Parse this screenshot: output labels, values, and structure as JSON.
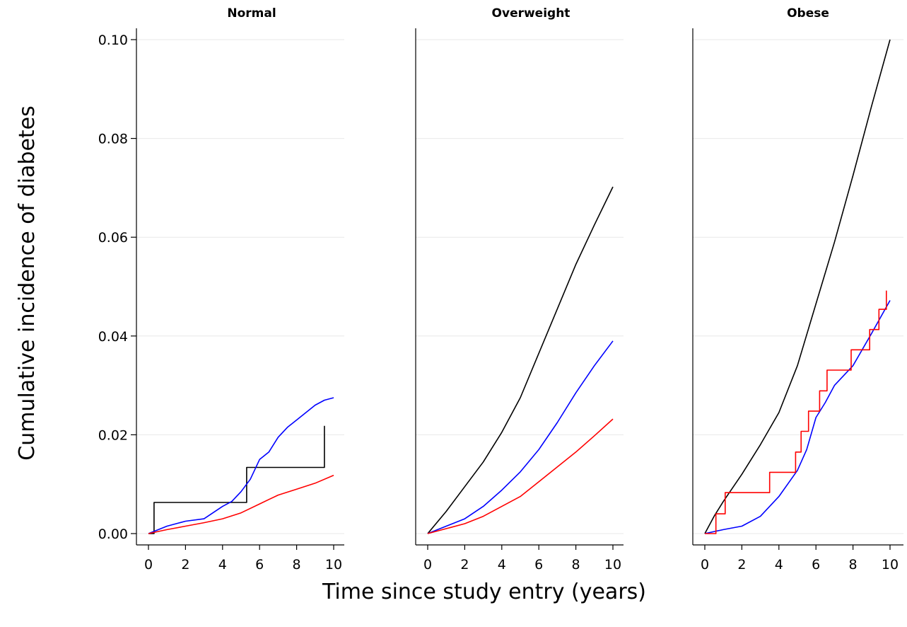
{
  "chart_data": {
    "type": "line",
    "ylabel": "Cumulative incidence of diabetes",
    "xlabel": "Time since study entry (years)",
    "ylim": [
      0,
      0.1
    ],
    "xlim": [
      0,
      10
    ],
    "y_ticks": [
      "0.00",
      "0.02",
      "0.04",
      "0.06",
      "0.08",
      "0.10"
    ],
    "x_ticks": [
      "0",
      "2",
      "4",
      "6",
      "8",
      "10"
    ],
    "grid": true,
    "colors": {
      "black": "#000000",
      "blue": "#0000ff",
      "red": "#ff0000"
    },
    "panels": [
      {
        "title": "Normal",
        "series": [
          {
            "color": "#000000",
            "step": true,
            "x": [
              0,
              0.3,
              0.3,
              5.3,
              5.3,
              9.5,
              9.5
            ],
            "y": [
              0,
              0,
              0.0063,
              0.0063,
              0.0134,
              0.0134,
              0.0218
            ]
          },
          {
            "color": "#0000ff",
            "step": false,
            "x": [
              0,
              1,
              2,
              3,
              4,
              4.5,
              5,
              5.5,
              6,
              6.5,
              7,
              7.5,
              8,
              8.5,
              9,
              9.5,
              10
            ],
            "y": [
              0,
              0.0015,
              0.0025,
              0.003,
              0.0055,
              0.0065,
              0.0085,
              0.011,
              0.015,
              0.0165,
              0.0195,
              0.0215,
              0.023,
              0.0245,
              0.026,
              0.027,
              0.0275
            ]
          },
          {
            "color": "#ff0000",
            "step": false,
            "x": [
              0,
              1,
              2,
              3,
              4,
              5,
              6,
              7,
              8,
              9,
              10
            ],
            "y": [
              0,
              0.0008,
              0.0015,
              0.0022,
              0.003,
              0.0042,
              0.006,
              0.0078,
              0.009,
              0.0102,
              0.0118
            ]
          }
        ]
      },
      {
        "title": "Overweight",
        "series": [
          {
            "color": "#000000",
            "step": false,
            "x": [
              0,
              1,
              2,
              3,
              4,
              5,
              6,
              7,
              8,
              9,
              10
            ],
            "y": [
              0,
              0.0045,
              0.0095,
              0.0145,
              0.0205,
              0.0275,
              0.0365,
              0.0455,
              0.0545,
              0.0625,
              0.0702
            ]
          },
          {
            "color": "#0000ff",
            "step": false,
            "x": [
              0,
              1,
              2,
              3,
              4,
              5,
              6,
              7,
              8,
              9,
              10
            ],
            "y": [
              0,
              0.0015,
              0.003,
              0.0055,
              0.0088,
              0.0125,
              0.017,
              0.0225,
              0.0285,
              0.034,
              0.039
            ]
          },
          {
            "color": "#ff0000",
            "step": false,
            "x": [
              0,
              1,
              2,
              3,
              4,
              5,
              6,
              7,
              8,
              9,
              10
            ],
            "y": [
              0,
              0.001,
              0.002,
              0.0035,
              0.0055,
              0.0075,
              0.0105,
              0.0135,
              0.0165,
              0.0198,
              0.0232
            ]
          }
        ]
      },
      {
        "title": "Obese",
        "series": [
          {
            "color": "#000000",
            "step": false,
            "x": [
              0,
              0.5,
              1,
              2,
              3,
              4,
              5,
              6,
              7,
              8,
              9,
              10
            ],
            "y": [
              0,
              0.0035,
              0.0065,
              0.012,
              0.018,
              0.0245,
              0.034,
              0.0465,
              0.059,
              0.0725,
              0.0865,
              0.1
            ]
          },
          {
            "color": "#0000ff",
            "step": false,
            "x": [
              0,
              1,
              2,
              3,
              4,
              5,
              5.5,
              6,
              6.5,
              7,
              8,
              9,
              10
            ],
            "y": [
              0,
              0.0008,
              0.0015,
              0.0035,
              0.0075,
              0.0128,
              0.017,
              0.0235,
              0.0265,
              0.03,
              0.034,
              0.0405,
              0.0472
            ]
          },
          {
            "color": "#ff0000",
            "step": true,
            "x": [
              0,
              0.6,
              0.6,
              1.1,
              1.1,
              3.5,
              3.5,
              4.9,
              4.9,
              5.2,
              5.2,
              5.6,
              5.6,
              6.2,
              6.2,
              6.6,
              6.6,
              7.9,
              7.9,
              8.9,
              8.9,
              9.4,
              9.4,
              9.8,
              9.8
            ],
            "y": [
              0,
              0,
              0.004,
              0.004,
              0.0083,
              0.0083,
              0.0124,
              0.0124,
              0.0165,
              0.0165,
              0.0207,
              0.0207,
              0.0248,
              0.0248,
              0.0289,
              0.0289,
              0.0331,
              0.0331,
              0.0372,
              0.0372,
              0.0413,
              0.0413,
              0.0454,
              0.0454,
              0.0492
            ]
          }
        ]
      }
    ]
  }
}
